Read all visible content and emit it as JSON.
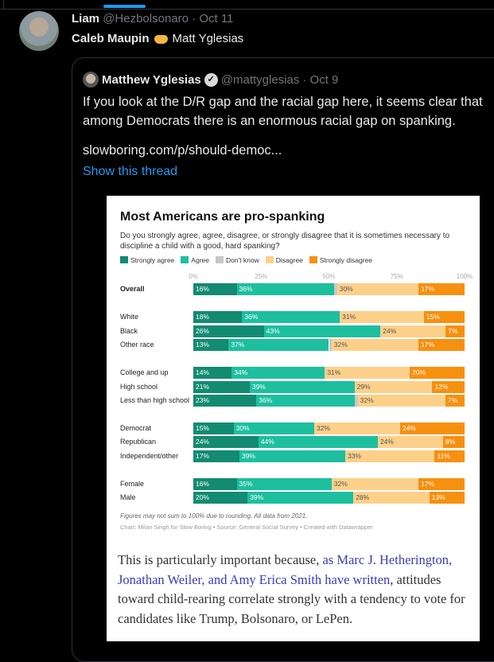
{
  "tweet": {
    "name": "Liam",
    "handle": "@Hezbolsonaro",
    "date": "· Oct 11",
    "text_left": "Caleb Maupin",
    "text_right": "Matt Yglesias",
    "emoji_icon": "handshake-icon"
  },
  "quoted": {
    "name": "Matthew Yglesias",
    "handle": "@mattyglesias",
    "date": "· Oct 9",
    "text": "If you look at the D/R gap and the racial gap here, it seems clear that among Democrats there is an enormous racial gap on spanking.",
    "link": "slowboring.com/p/should-democ...",
    "show_thread": "Show this thread"
  },
  "colors": {
    "strongly_agree": "#138a72",
    "agree": "#1dbf9f",
    "dont_know": "#c8c8c8",
    "disagree": "#fdd08a",
    "strongly_disagree": "#f7900f",
    "link": "#1d9bf0"
  },
  "chart_data": {
    "type": "bar",
    "stacked": true,
    "orientation": "horizontal",
    "title": "Most Americans are pro-spanking",
    "subtitle": "Do you strongly agree, agree, disagree, or strongly disagree that it is sometimes necessary to discipline a child with a good, hard spanking?",
    "legend": [
      "Strongly agree",
      "Agree",
      "Don't know",
      "Disagree",
      "Strongly disagree"
    ],
    "legend_placement": "top-left",
    "xticks": [
      "0%",
      "25%",
      "50%",
      "75%",
      "100%"
    ],
    "xlim": [
      0,
      100
    ],
    "categories": [
      "Overall",
      "White",
      "Black",
      "Other race",
      "College and up",
      "High school",
      "Less than high school",
      "Democrat",
      "Republican",
      "Independent/other",
      "Female",
      "Male"
    ],
    "groups": [
      [
        0
      ],
      [
        1,
        2,
        3
      ],
      [
        4,
        5,
        6
      ],
      [
        7,
        8,
        9
      ],
      [
        10,
        11
      ]
    ],
    "series": [
      {
        "name": "Strongly agree",
        "values": [
          16,
          18,
          26,
          13,
          14,
          21,
          23,
          15,
          24,
          17,
          16,
          20
        ]
      },
      {
        "name": "Agree",
        "values": [
          36,
          36,
          43,
          37,
          34,
          39,
          36,
          30,
          44,
          39,
          35,
          39
        ]
      },
      {
        "name": "Don't know",
        "values": [
          1,
          0,
          0,
          1,
          0,
          0,
          1,
          0,
          0,
          0,
          0,
          0
        ]
      },
      {
        "name": "Disagree",
        "values": [
          30,
          31,
          24,
          32,
          31,
          29,
          32,
          32,
          24,
          33,
          32,
          28
        ]
      },
      {
        "name": "Strongly disagree",
        "values": [
          17,
          15,
          7,
          17,
          20,
          12,
          7,
          24,
          8,
          11,
          17,
          13
        ]
      }
    ],
    "note": "Figures may not sum to 100% due to rounding. All data from 2021.",
    "credit": "Chart: Milan Singh for Slow Boring • Source: General Social Survey • Created with Datawrapper"
  },
  "article": {
    "before": "This is particularly important because, ",
    "link": "as Marc J. Hetherington, Jonathan Weiler, and Amy Erica Smith have written",
    "after": ", attitudes toward child-rearing correlate strongly with a tendency to vote for candidates like Trump, Bolsonaro, or LePen."
  }
}
